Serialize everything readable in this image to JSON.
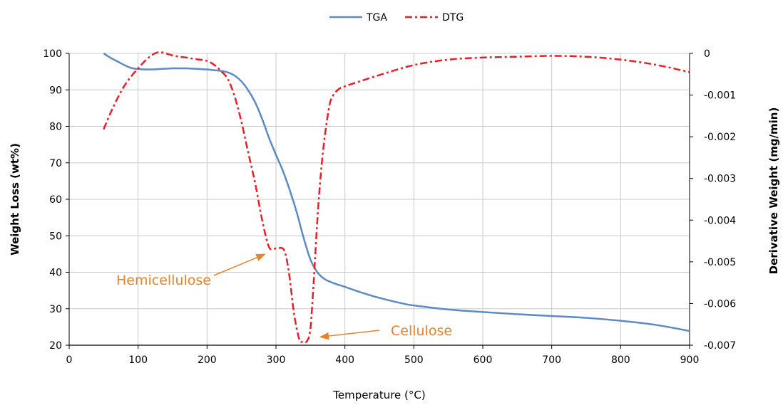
{
  "chart_data": {
    "type": "line",
    "title": "",
    "xlabel": "Temperature  (°C)",
    "ylabel": "Weight Loss (wt%)",
    "y2label": "Derivative Weight (mg/min)",
    "xlim": [
      0,
      900
    ],
    "ylim": [
      20,
      100
    ],
    "y2lim": [
      -0.007,
      0
    ],
    "xticks": [
      "0",
      "100",
      "200",
      "300",
      "400",
      "500",
      "600",
      "700",
      "800",
      "900"
    ],
    "yticks": [
      "20",
      "30",
      "40",
      "50",
      "60",
      "70",
      "80",
      "90",
      "100"
    ],
    "y2ticks": [
      "0",
      "-0.001",
      "-0.002",
      "-0.003",
      "-0.004",
      "-0.005",
      "-0.006",
      "-0.007"
    ],
    "grid": true,
    "legend_position": "top-center",
    "series": [
      {
        "name": "TGA",
        "axis": "left",
        "color": "#5B8AC6",
        "style": "solid",
        "x": [
          50,
          60,
          70,
          80,
          90,
          100,
          110,
          120,
          130,
          140,
          150,
          160,
          170,
          180,
          190,
          200,
          210,
          220,
          230,
          240,
          250,
          260,
          270,
          280,
          290,
          300,
          310,
          320,
          330,
          340,
          350,
          360,
          370,
          380,
          390,
          400,
          420,
          440,
          460,
          480,
          500,
          550,
          600,
          650,
          700,
          750,
          800,
          850,
          900
        ],
        "y": [
          100,
          98.8,
          97.8,
          96.8,
          96.0,
          95.7,
          95.6,
          95.6,
          95.7,
          95.8,
          95.9,
          95.9,
          95.9,
          95.8,
          95.7,
          95.6,
          95.4,
          95.2,
          94.8,
          93.9,
          92.3,
          89.8,
          86.5,
          82.0,
          76.8,
          72.2,
          67.8,
          62.5,
          56.5,
          49.5,
          43.5,
          40.0,
          38.2,
          37.3,
          36.6,
          36.0,
          34.7,
          33.5,
          32.5,
          31.6,
          30.9,
          29.8,
          29.1,
          28.5,
          28.0,
          27.5,
          26.7,
          25.6,
          23.9
        ]
      },
      {
        "name": "DTG",
        "axis": "right",
        "color": "#EE1C25",
        "style": "dash-dot",
        "x": [
          50,
          60,
          70,
          80,
          90,
          100,
          110,
          120,
          130,
          140,
          150,
          160,
          170,
          180,
          190,
          200,
          210,
          220,
          230,
          240,
          250,
          260,
          270,
          280,
          290,
          300,
          310,
          315,
          320,
          325,
          330,
          335,
          340,
          345,
          350,
          355,
          360,
          365,
          370,
          375,
          380,
          390,
          400,
          420,
          450,
          500,
          550,
          600,
          650,
          700,
          750,
          800,
          850,
          900
        ],
        "y": [
          -0.00182,
          -0.00143,
          -0.00108,
          -0.00078,
          -0.00055,
          -0.00036,
          -0.00018,
          -4e-05,
          3e-05,
          0.0,
          -5e-05,
          -8e-05,
          -0.0001,
          -0.00013,
          -0.00015,
          -0.00018,
          -0.00027,
          -0.00042,
          -0.00061,
          -0.00103,
          -0.00165,
          -0.0024,
          -0.00313,
          -0.004,
          -0.00465,
          -0.00468,
          -0.00468,
          -0.0049,
          -0.0054,
          -0.0061,
          -0.0066,
          -0.0069,
          -0.0069,
          -0.0069,
          -0.0066,
          -0.0054,
          -0.004,
          -0.0029,
          -0.0021,
          -0.0015,
          -0.0011,
          -0.00087,
          -0.00079,
          -0.00068,
          -0.00052,
          -0.00028,
          -0.00015,
          -0.0001,
          -8e-05,
          -6e-05,
          -8e-05,
          -0.00015,
          -0.00027,
          -0.00045
        ]
      }
    ],
    "annotations": [
      {
        "text": "Hemicellulose",
        "x": 290,
        "y2": -0.00475
      },
      {
        "text": "Cellulose",
        "x": 358,
        "y2": -0.0067
      }
    ]
  }
}
